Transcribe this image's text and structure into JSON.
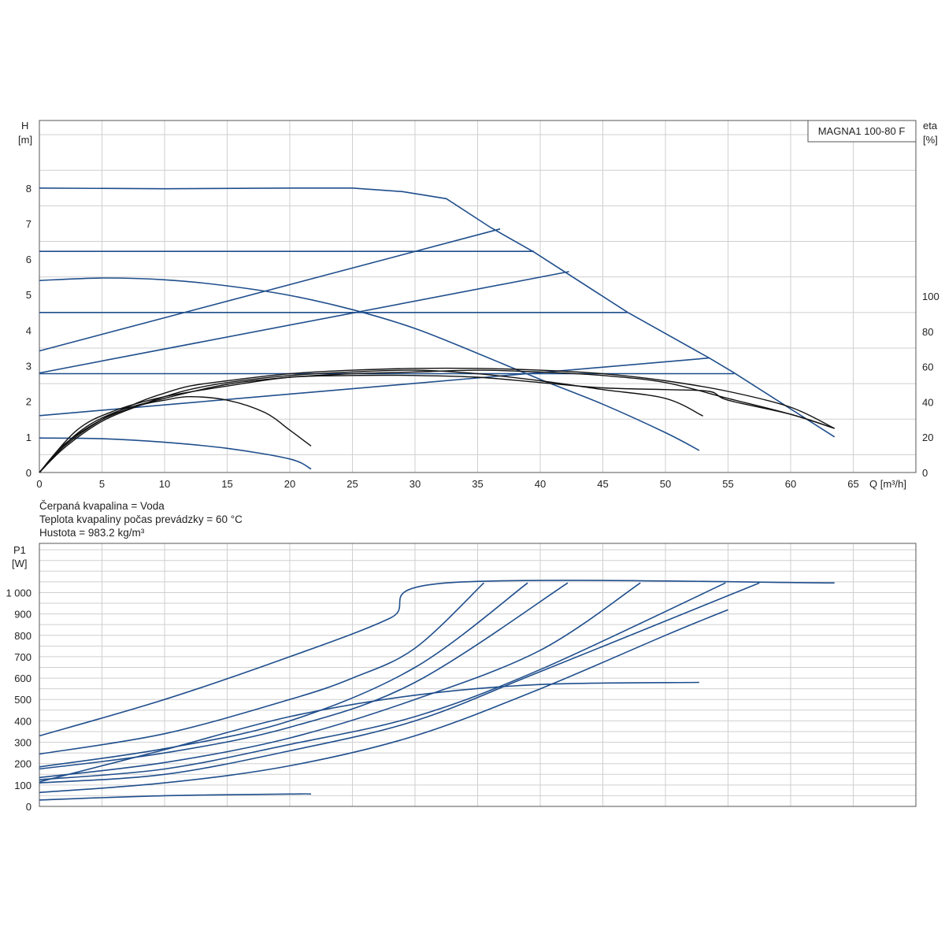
{
  "chart_data": [
    {
      "type": "line",
      "title": "MAGNA1 100-80 F",
      "xlabel": "Q [m³/h]",
      "ylabel": "H",
      "ylabel_unit": "[m]",
      "y2label": "eta",
      "y2label_unit": "[%]",
      "xlim": [
        0,
        70
      ],
      "ylim": [
        0,
        9.9
      ],
      "y2lim": [
        0,
        100
      ],
      "x_ticks": [
        0,
        5,
        10,
        15,
        20,
        25,
        30,
        35,
        40,
        45,
        50,
        55,
        60,
        65
      ],
      "y_ticks": [
        0,
        1,
        2,
        3,
        4,
        5,
        6,
        7,
        8
      ],
      "y2_ticks": [
        0,
        20,
        40,
        60,
        80,
        100
      ],
      "grid": true,
      "legend": "top-right",
      "series": [
        {
          "axis": "H",
          "color": "#1f4e8c",
          "points": [
            [
              0,
              8.0
            ],
            [
              10,
              7.98
            ],
            [
              20,
              8.0
            ],
            [
              25,
              8.0
            ],
            [
              29,
              7.9
            ],
            [
              32.5,
              7.7
            ],
            [
              36,
              6.9
            ],
            [
              39.5,
              6.2
            ],
            [
              47,
              4.5
            ],
            [
              53.5,
              3.22
            ],
            [
              55.5,
              2.8
            ],
            [
              63.5,
              1.0
            ]
          ]
        },
        {
          "axis": "H",
          "color": "#1f4e8c",
          "points": [
            [
              0,
              6.22
            ],
            [
              39.5,
              6.22
            ]
          ]
        },
        {
          "axis": "H",
          "color": "#1f4e8c",
          "points": [
            [
              0,
              4.5
            ],
            [
              47,
              4.5
            ]
          ]
        },
        {
          "axis": "H",
          "color": "#1f4e8c",
          "points": [
            [
              0,
              2.78
            ],
            [
              55.5,
              2.78
            ]
          ]
        },
        {
          "axis": "H",
          "color": "#1f4e8c",
          "points": [
            [
              0,
              3.42
            ],
            [
              36.8,
              6.85
            ]
          ]
        },
        {
          "axis": "H",
          "color": "#1f4e8c",
          "points": [
            [
              0,
              2.8
            ],
            [
              42.3,
              5.65
            ]
          ]
        },
        {
          "axis": "H",
          "color": "#1f4e8c",
          "points": [
            [
              0,
              1.6
            ],
            [
              53.5,
              3.22
            ]
          ]
        },
        {
          "axis": "H",
          "color": "#1f4e8c",
          "points": [
            [
              0,
              5.4
            ],
            [
              5,
              5.47
            ],
            [
              10,
              5.42
            ],
            [
              15,
              5.25
            ],
            [
              20,
              4.98
            ],
            [
              25,
              4.58
            ],
            [
              30,
              4.05
            ],
            [
              35,
              3.35
            ],
            [
              40,
              2.62
            ],
            [
              45,
              1.92
            ],
            [
              50,
              1.12
            ],
            [
              52.7,
              0.62
            ]
          ]
        },
        {
          "axis": "H",
          "color": "#1f4e8c",
          "points": [
            [
              0,
              0.97
            ],
            [
              5,
              0.95
            ],
            [
              10,
              0.85
            ],
            [
              15,
              0.68
            ],
            [
              20,
              0.38
            ],
            [
              21.7,
              0.1
            ]
          ]
        },
        {
          "axis": "eta",
          "color": "#111111",
          "points": [
            [
              0,
              0
            ],
            [
              2,
              15
            ],
            [
              5,
              30
            ],
            [
              8,
              40
            ],
            [
              10,
              45
            ],
            [
              12,
              49
            ],
            [
              15,
              52
            ],
            [
              20,
              56
            ],
            [
              25,
              58
            ],
            [
              30,
              59
            ],
            [
              35,
              59
            ],
            [
              40,
              58
            ],
            [
              45,
              56
            ],
            [
              50,
              52
            ],
            [
              55,
              46
            ],
            [
              60,
              37
            ],
            [
              63.5,
              25
            ]
          ]
        },
        {
          "axis": "eta",
          "color": "#111111",
          "points": [
            [
              0,
              0
            ],
            [
              2,
              14
            ],
            [
              5,
              29
            ],
            [
              8,
              38
            ],
            [
              10,
              43
            ],
            [
              12,
              47
            ],
            [
              15,
              51
            ],
            [
              20,
              55
            ],
            [
              25,
              57
            ],
            [
              30,
              58
            ],
            [
              35,
              56
            ],
            [
              40,
              52
            ],
            [
              45,
              47
            ],
            [
              50,
              42
            ],
            [
              53,
              32
            ]
          ]
        },
        {
          "axis": "eta",
          "color": "#111111",
          "points": [
            [
              0,
              0
            ],
            [
              3,
              22
            ],
            [
              6,
              34
            ],
            [
              10,
              42
            ],
            [
              15,
              50
            ],
            [
              20,
              54
            ],
            [
              25,
              56
            ],
            [
              30,
              57
            ],
            [
              35,
              58
            ],
            [
              40,
              57
            ],
            [
              45,
              55
            ],
            [
              50,
              51
            ],
            [
              55,
              42
            ],
            [
              60,
              33
            ],
            [
              63.5,
              25
            ]
          ]
        },
        {
          "axis": "eta",
          "color": "#111111",
          "points": [
            [
              0,
              0
            ],
            [
              3,
              24
            ],
            [
              6,
              35
            ],
            [
              10,
              43
            ],
            [
              15,
              49
            ],
            [
              20,
              54
            ],
            [
              25,
              55
            ],
            [
              30,
              55
            ],
            [
              35,
              54
            ],
            [
              40,
              51
            ],
            [
              45,
              48
            ],
            [
              50,
              47
            ],
            [
              53.5,
              46
            ],
            [
              55,
              41
            ],
            [
              60,
              33
            ],
            [
              63.5,
              25
            ]
          ]
        },
        {
          "axis": "eta",
          "color": "#111111",
          "points": [
            [
              0,
              0
            ],
            [
              2,
              16
            ],
            [
              5,
              30
            ],
            [
              8,
              38
            ],
            [
              10,
              41
            ],
            [
              12,
              43
            ],
            [
              15,
              41
            ],
            [
              18,
              34
            ],
            [
              20,
              24
            ],
            [
              21.7,
              15
            ]
          ]
        }
      ]
    },
    {
      "type": "line",
      "xlabel": "",
      "ylabel": "P1",
      "ylabel_unit": "[W]",
      "xlim": [
        0,
        70
      ],
      "ylim": [
        0,
        1230
      ],
      "y_ticks": [
        0,
        100,
        200,
        300,
        400,
        500,
        600,
        700,
        800,
        900,
        1000
      ],
      "y_tick_labels": [
        "0",
        "100",
        "200",
        "300",
        "400",
        "500",
        "600",
        "700",
        "800",
        "900",
        "1 000"
      ],
      "grid": true,
      "series": [
        {
          "color": "#1f4e8c",
          "points": [
            [
              0,
              330
            ],
            [
              10,
              500
            ],
            [
              20,
              700
            ],
            [
              28,
              880
            ],
            [
              32.5,
              1045
            ],
            [
              63.5,
              1045
            ]
          ]
        },
        {
          "color": "#1f4e8c",
          "points": [
            [
              0,
              245
            ],
            [
              10,
              340
            ],
            [
              20,
              500
            ],
            [
              25,
              600
            ],
            [
              30,
              740
            ],
            [
              35.5,
              1045
            ]
          ]
        },
        {
          "color": "#1f4e8c",
          "points": [
            [
              0,
              185
            ],
            [
              10,
              270
            ],
            [
              20,
              400
            ],
            [
              30,
              650
            ],
            [
              39,
              1045
            ]
          ]
        },
        {
          "color": "#1f4e8c",
          "points": [
            [
              0,
              175
            ],
            [
              10,
              250
            ],
            [
              20,
              370
            ],
            [
              30,
              580
            ],
            [
              42.2,
              1045
            ]
          ]
        },
        {
          "color": "#1f4e8c",
          "points": [
            [
              0,
              135
            ],
            [
              10,
              205
            ],
            [
              20,
              320
            ],
            [
              30,
              500
            ],
            [
              40,
              730
            ],
            [
              48,
              1045
            ]
          ]
        },
        {
          "color": "#1f4e8c",
          "points": [
            [
              0,
              125
            ],
            [
              10,
              175
            ],
            [
              20,
              290
            ],
            [
              30,
              420
            ],
            [
              40,
              640
            ],
            [
              54.8,
              1045
            ]
          ]
        },
        {
          "color": "#1f4e8c",
          "points": [
            [
              0,
              110
            ],
            [
              10,
              150
            ],
            [
              20,
              260
            ],
            [
              30,
              400
            ],
            [
              40,
              630
            ],
            [
              57.5,
              1045
            ]
          ]
        },
        {
          "color": "#1f4e8c",
          "points": [
            [
              0,
              115
            ],
            [
              10,
              265
            ],
            [
              20,
              420
            ],
            [
              30,
              520
            ],
            [
              40,
              570
            ],
            [
              52.7,
              580
            ]
          ]
        },
        {
          "color": "#1f4e8c",
          "points": [
            [
              0,
              65
            ],
            [
              10,
              110
            ],
            [
              20,
              190
            ],
            [
              30,
              330
            ],
            [
              40,
              550
            ],
            [
              50,
              800
            ],
            [
              55,
              920
            ]
          ]
        },
        {
          "color": "#1f4e8c",
          "points": [
            [
              0,
              30
            ],
            [
              10,
              50
            ],
            [
              20,
              58
            ],
            [
              21.7,
              58
            ]
          ]
        }
      ]
    }
  ],
  "fluid_info": {
    "fluid": "Čerpaná kvapalina = Voda",
    "temperature": "Teplota kvapaliny počas prevádzky = 60 °C",
    "density": "Hustota = 983.2 kg/m³"
  }
}
